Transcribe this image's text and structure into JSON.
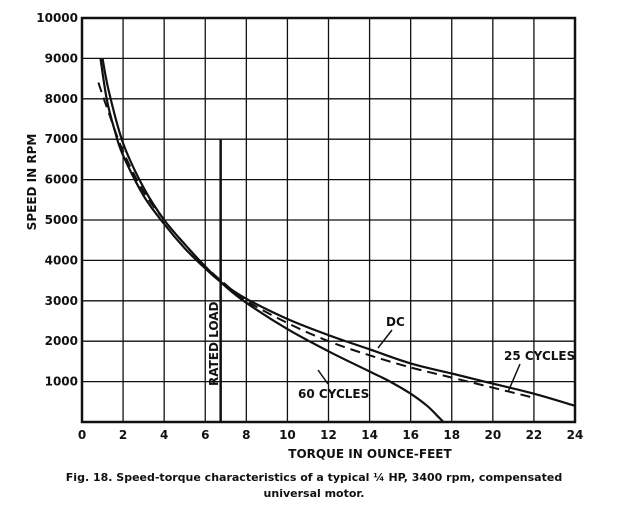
{
  "chart_data": {
    "type": "line",
    "xlabel": "TORQUE IN OUNCE-FEET",
    "ylabel": "SPEED IN RPM",
    "xlim": [
      0,
      24
    ],
    "ylim": [
      0,
      10000
    ],
    "xticks": [
      0,
      2,
      4,
      6,
      8,
      10,
      12,
      14,
      16,
      18,
      20,
      22,
      24
    ],
    "yticks": [
      1000,
      2000,
      3000,
      4000,
      5000,
      6000,
      7000,
      8000,
      9000,
      10000
    ],
    "grid": true,
    "series": [
      {
        "name": "DC",
        "style": "solid",
        "x": [
          0.9,
          1.2,
          1.6,
          2.0,
          3.0,
          4.0,
          5.0,
          6.0,
          6.8,
          8.0,
          10.0,
          12.0,
          14.0,
          16.0,
          18.0,
          20.0,
          22.0,
          24.0
        ],
        "y": [
          9000,
          8000,
          7200,
          6600,
          5600,
          4900,
          4300,
          3800,
          3450,
          3050,
          2550,
          2150,
          1800,
          1450,
          1200,
          950,
          700,
          400
        ]
      },
      {
        "name": "25 CYCLES",
        "style": "dashed",
        "x": [
          0.8,
          1.2,
          2.0,
          3.0,
          4.0,
          5.0,
          6.0,
          7.0,
          8.0,
          10.0,
          12.0,
          14.0,
          16.0,
          18.0,
          20.0,
          22.0
        ],
        "y": [
          8400,
          7800,
          6700,
          5700,
          5000,
          4400,
          3850,
          3400,
          3000,
          2450,
          2000,
          1650,
          1350,
          1100,
          850,
          600
        ]
      },
      {
        "name": "60 CYCLES",
        "style": "solid",
        "x": [
          1.0,
          1.3,
          2.0,
          3.0,
          4.0,
          5.0,
          6.0,
          7.0,
          8.0,
          10.0,
          12.0,
          14.0,
          15.0,
          16.0,
          16.8,
          17.3,
          17.6
        ],
        "y": [
          9000,
          8200,
          6900,
          5800,
          5000,
          4400,
          3850,
          3350,
          2950,
          2300,
          1750,
          1250,
          1000,
          700,
          400,
          150,
          0
        ]
      }
    ],
    "annotations": [
      {
        "text": "RATED LOAD",
        "x": 6.75,
        "y_top": 7000
      },
      {
        "text": "DC"
      },
      {
        "text": "25 CYCLES"
      },
      {
        "text": "60 CYCLES"
      }
    ],
    "caption": [
      "Fig. 18. Speed-torque characteristics of a typical ¼ HP, 3400 rpm, compensated",
      "universal motor."
    ]
  },
  "colors": {
    "ink": "#111111",
    "background": "#ffffff"
  }
}
